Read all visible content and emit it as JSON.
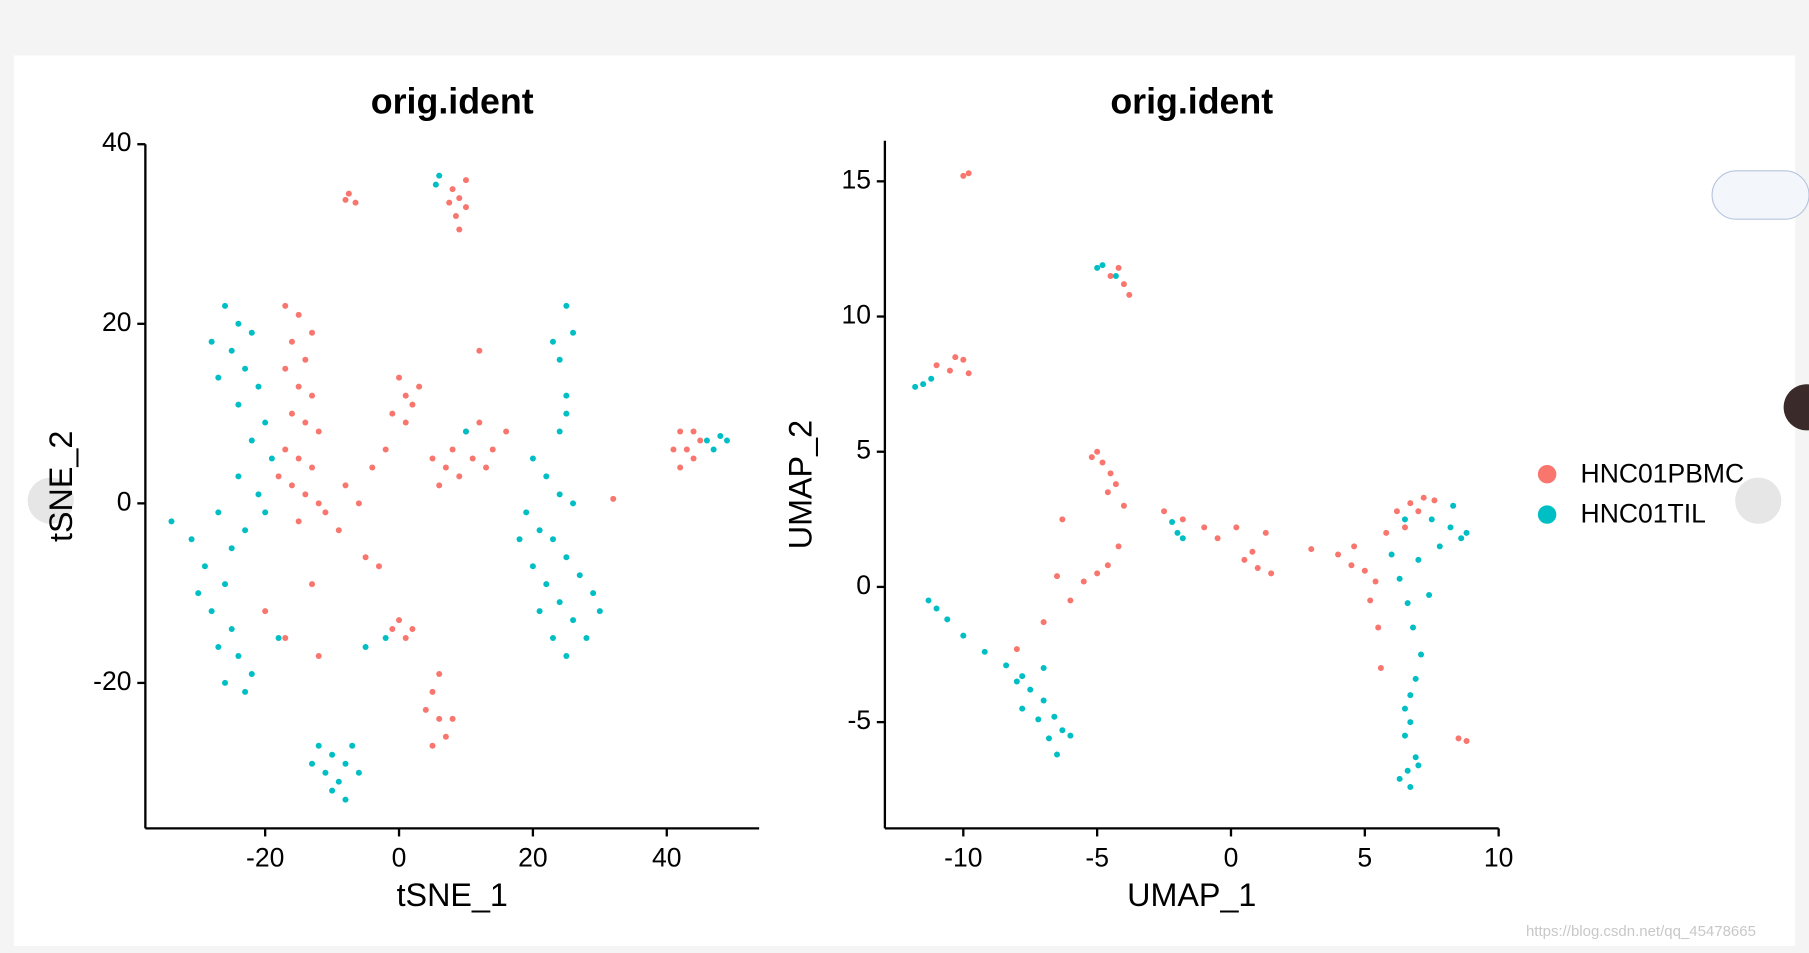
{
  "chart_data": [
    {
      "type": "scatter",
      "title": "orig.ident",
      "xlabel": "tSNE_1",
      "ylabel": "tSNE_2",
      "xlim": [
        -37.9,
        53.8
      ],
      "ylim": [
        -36.2,
        40
      ],
      "xticks": [
        -20,
        0,
        20,
        40
      ],
      "yticks": [
        -20,
        0,
        20,
        40
      ],
      "series": [
        {
          "name": "HNC01PBMC",
          "color": "#F8766D",
          "x": [
            -7.5,
            -6.5,
            -8,
            8,
            9,
            10,
            8.5,
            9,
            10,
            7.5,
            -17,
            -15,
            -13,
            -16,
            -14,
            -17,
            -15,
            -13,
            -16,
            -14,
            -12,
            -17,
            -15,
            -13,
            -16,
            -14,
            -12,
            -15,
            -11,
            -18,
            -8,
            -6,
            -9,
            -5,
            -3,
            -4,
            -2,
            0,
            1,
            2,
            -1,
            1,
            3,
            5,
            7,
            9,
            11,
            13,
            8,
            10,
            12,
            14,
            6,
            16,
            12,
            32,
            42,
            43,
            44,
            42,
            45,
            41,
            44,
            0,
            2,
            1,
            -1,
            5,
            6,
            7,
            5,
            8,
            6,
            4,
            -12,
            -20,
            -17,
            -13
          ],
          "values": [
            34.5,
            33.5,
            33.8,
            35,
            34,
            33,
            32,
            30.5,
            36,
            33.5,
            22,
            21,
            19,
            18,
            16,
            15,
            13,
            12,
            10,
            9,
            8,
            6,
            5,
            4,
            2,
            1,
            0,
            -2,
            -1,
            3,
            2,
            0,
            -3,
            -6,
            -7,
            4,
            6,
            14,
            12,
            11,
            10,
            9,
            13,
            5,
            4,
            3,
            5,
            4,
            6,
            8,
            9,
            6,
            2,
            8,
            17,
            0.5,
            8,
            6,
            5,
            4,
            7,
            6,
            8,
            -13,
            -14,
            -15,
            -14,
            -21,
            -24,
            -26,
            -27,
            -24,
            -19,
            -23,
            -17,
            -12,
            -15,
            -9
          ]
        },
        {
          "name": "HNC01TIL",
          "color": "#00BFC4",
          "x": [
            -26,
            -24,
            -22,
            -28,
            -25,
            -23,
            -27,
            -21,
            -24,
            -20,
            -22,
            -19,
            -24,
            -21,
            -27,
            -23,
            -25,
            -29,
            -26,
            -30,
            -28,
            -25,
            -27,
            -24,
            -22,
            -26,
            -23,
            -31,
            -34,
            -20,
            -18,
            -12,
            -10,
            -8,
            -11,
            -9,
            -7,
            -13,
            -10,
            -8,
            -6,
            20,
            22,
            24,
            26,
            19,
            21,
            23,
            25,
            27,
            29,
            20,
            22,
            24,
            26,
            28,
            21,
            23,
            25,
            30,
            18,
            24,
            25,
            24,
            26,
            25,
            23,
            25,
            6,
            5.5,
            46,
            48,
            47,
            49,
            -5,
            -2,
            10
          ],
          "values": [
            22,
            20,
            19,
            18,
            17,
            15,
            14,
            13,
            11,
            9,
            7,
            5,
            3,
            1,
            -1,
            -3,
            -5,
            -7,
            -9,
            -10,
            -12,
            -14,
            -16,
            -17,
            -19,
            -20,
            -21,
            -4,
            -2,
            -1,
            -15,
            -27,
            -28,
            -29,
            -30,
            -31,
            -27,
            -29,
            -32,
            -33,
            -30,
            5,
            3,
            1,
            0,
            -1,
            -3,
            -4,
            -6,
            -8,
            -10,
            -7,
            -9,
            -11,
            -13,
            -15,
            -12,
            -15,
            -17,
            -12,
            -4,
            8,
            12,
            16,
            19,
            22,
            18,
            10,
            36.5,
            35.5,
            7,
            7.5,
            6,
            7,
            -16,
            -15,
            8
          ]
        }
      ]
    },
    {
      "type": "scatter",
      "title": "orig.ident",
      "xlabel": "UMAP_1",
      "ylabel": "UMAP_2",
      "xlim": [
        -12.93,
        10
      ],
      "ylim": [
        -8.93,
        16.5
      ],
      "xticks": [
        -10,
        -5,
        0,
        5,
        10
      ],
      "yticks": [
        -5,
        0,
        5,
        10,
        15
      ],
      "series": [
        {
          "name": "HNC01PBMC",
          "color": "#F8766D",
          "x": [
            -10,
            -9.8,
            -4.5,
            -4,
            -3.8,
            -4.2,
            -10.5,
            -10,
            -9.8,
            -11,
            -10.3,
            -5,
            -4.8,
            -4.5,
            -4.3,
            -5.2,
            -4.6,
            -4,
            -4.2,
            -4.6,
            -5,
            -5.5,
            -6,
            -7,
            -8,
            -6.5,
            -6.3,
            -2.5,
            -1.8,
            -1,
            -0.5,
            0.2,
            0.5,
            1,
            1.5,
            0.8,
            1.3,
            3,
            4,
            4.5,
            5,
            5.4,
            4.6,
            5.2,
            5.5,
            5.6,
            6.2,
            6.7,
            7.2,
            7.6,
            6.5,
            5.8,
            7,
            8.5,
            8.8
          ],
          "values": [
            15.2,
            15.3,
            11.5,
            11.2,
            10.8,
            11.8,
            8,
            8.4,
            7.9,
            8.2,
            8.5,
            5,
            4.6,
            4.2,
            3.8,
            4.8,
            3.5,
            3,
            1.5,
            0.8,
            0.5,
            0.2,
            -0.5,
            -1.3,
            -2.3,
            0.4,
            2.5,
            2.8,
            2.5,
            2.2,
            1.8,
            2.2,
            1,
            0.7,
            0.5,
            1.3,
            2,
            1.4,
            1.2,
            0.8,
            0.6,
            0.2,
            1.5,
            -0.5,
            -1.5,
            -3,
            2.8,
            3.1,
            3.3,
            3.2,
            2.2,
            2,
            2.8,
            -5.6,
            -5.7
          ]
        },
        {
          "name": "HNC01TIL",
          "color": "#00BFC4",
          "x": [
            -11.5,
            -11.8,
            -11.2,
            -5,
            -4.8,
            -4.3,
            -11.3,
            -11,
            -10.6,
            -10,
            -9.2,
            -8.4,
            -7.8,
            -7.5,
            -7,
            -6.6,
            -6.3,
            -6.8,
            -6.5,
            -7.2,
            -7.8,
            -6,
            -7,
            -8,
            -2.2,
            -2,
            -1.8,
            6.5,
            7.5,
            8.2,
            8.6,
            7.8,
            7,
            6.3,
            6.6,
            6.8,
            7.1,
            6.9,
            6.7,
            6.5,
            6.7,
            6.5,
            6.9,
            6.6,
            6.3,
            6.7,
            7,
            8.8,
            8.3,
            6,
            7.4
          ],
          "values": [
            7.5,
            7.4,
            7.7,
            11.8,
            11.9,
            11.5,
            -0.5,
            -0.8,
            -1.2,
            -1.8,
            -2.4,
            -2.9,
            -3.3,
            -3.8,
            -4.2,
            -4.8,
            -5.3,
            -5.6,
            -6.2,
            -4.9,
            -4.5,
            -5.5,
            -3,
            -3.5,
            2.4,
            2,
            1.8,
            2.5,
            2.5,
            2.2,
            1.8,
            1.5,
            1,
            0.3,
            -0.6,
            -1.5,
            -2.5,
            -3.4,
            -4,
            -4.5,
            -5,
            -5.5,
            -6.3,
            -6.8,
            -7.1,
            -7.4,
            -6.6,
            2,
            3,
            1.2,
            -0.3
          ]
        }
      ]
    }
  ],
  "legend": "right",
  "watermark": "https://blog.csdn.net/qq_45478665"
}
